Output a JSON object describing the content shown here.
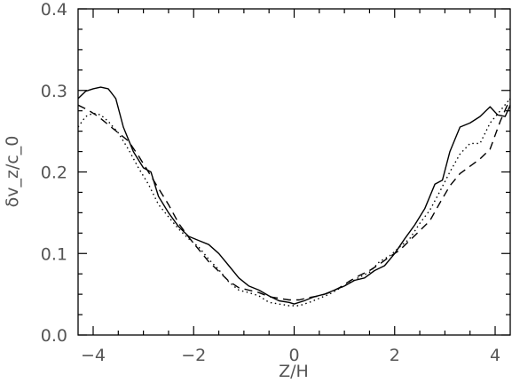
{
  "chart_data": {
    "type": "line",
    "xlabel": "Z/H",
    "ylabel": "δv_z/c_0",
    "xlim": [
      -4.3,
      4.3
    ],
    "ylim": [
      0,
      0.4
    ],
    "x_ticks": [
      -4,
      -2,
      0,
      2,
      4
    ],
    "x_tick_labels": [
      "−4",
      "−2",
      "0",
      "2",
      "4"
    ],
    "y_ticks": [
      0.0,
      0.1,
      0.2,
      0.3,
      0.4
    ],
    "y_tick_labels": [
      "0.0",
      "0.1",
      "0.2",
      "0.3",
      "0.4"
    ],
    "grid": false,
    "series": [
      {
        "style": "solid",
        "x": [
          -4.3,
          -4.15,
          -4.0,
          -3.85,
          -3.7,
          -3.55,
          -3.4,
          -3.2,
          -3.0,
          -2.85,
          -2.7,
          -2.5,
          -2.3,
          -2.1,
          -1.9,
          -1.7,
          -1.5,
          -1.3,
          -1.1,
          -0.9,
          -0.7,
          -0.5,
          -0.3,
          -0.1,
          0.0,
          0.2,
          0.4,
          0.6,
          0.8,
          1.0,
          1.2,
          1.4,
          1.6,
          1.8,
          2.0,
          2.2,
          2.4,
          2.6,
          2.8,
          2.95,
          3.1,
          3.3,
          3.5,
          3.7,
          3.9,
          4.05,
          4.2,
          4.3
        ],
        "y": [
          0.29,
          0.299,
          0.302,
          0.304,
          0.302,
          0.29,
          0.255,
          0.225,
          0.205,
          0.2,
          0.17,
          0.15,
          0.133,
          0.121,
          0.116,
          0.111,
          0.1,
          0.085,
          0.07,
          0.06,
          0.055,
          0.048,
          0.042,
          0.04,
          0.038,
          0.042,
          0.047,
          0.05,
          0.055,
          0.06,
          0.067,
          0.07,
          0.079,
          0.085,
          0.1,
          0.118,
          0.135,
          0.155,
          0.185,
          0.19,
          0.225,
          0.255,
          0.26,
          0.268,
          0.28,
          0.27,
          0.268,
          0.282
        ]
      },
      {
        "style": "dashed",
        "x": [
          -4.3,
          -4.1,
          -3.9,
          -3.7,
          -3.5,
          -3.3,
          -3.1,
          -2.9,
          -2.7,
          -2.5,
          -2.3,
          -2.1,
          -1.9,
          -1.7,
          -1.5,
          -1.3,
          -1.1,
          -0.9,
          -0.7,
          -0.5,
          -0.3,
          -0.1,
          0.1,
          0.3,
          0.5,
          0.7,
          0.9,
          1.1,
          1.3,
          1.5,
          1.7,
          1.9,
          2.1,
          2.3,
          2.5,
          2.7,
          2.9,
          3.1,
          3.3,
          3.5,
          3.7,
          3.9,
          4.1,
          4.3
        ],
        "y": [
          0.282,
          0.276,
          0.268,
          0.258,
          0.248,
          0.238,
          0.22,
          0.2,
          0.18,
          0.16,
          0.137,
          0.12,
          0.105,
          0.09,
          0.078,
          0.066,
          0.058,
          0.055,
          0.052,
          0.047,
          0.045,
          0.043,
          0.043,
          0.046,
          0.048,
          0.052,
          0.058,
          0.066,
          0.073,
          0.079,
          0.087,
          0.096,
          0.104,
          0.116,
          0.128,
          0.14,
          0.162,
          0.183,
          0.198,
          0.207,
          0.216,
          0.228,
          0.262,
          0.29
        ]
      },
      {
        "style": "dotted",
        "x": [
          -4.3,
          -4.15,
          -4.0,
          -3.85,
          -3.7,
          -3.5,
          -3.3,
          -3.1,
          -2.9,
          -2.7,
          -2.5,
          -2.3,
          -2.1,
          -1.9,
          -1.7,
          -1.5,
          -1.3,
          -1.1,
          -0.9,
          -0.7,
          -0.5,
          -0.3,
          -0.1,
          0.1,
          0.3,
          0.5,
          0.7,
          0.9,
          1.1,
          1.3,
          1.5,
          1.7,
          1.9,
          2.1,
          2.3,
          2.5,
          2.7,
          2.9,
          3.1,
          3.3,
          3.5,
          3.7,
          3.9,
          4.1,
          4.3
        ],
        "y": [
          0.255,
          0.268,
          0.272,
          0.27,
          0.262,
          0.248,
          0.228,
          0.205,
          0.185,
          0.16,
          0.145,
          0.13,
          0.118,
          0.108,
          0.093,
          0.08,
          0.065,
          0.055,
          0.052,
          0.048,
          0.04,
          0.038,
          0.036,
          0.036,
          0.04,
          0.045,
          0.05,
          0.057,
          0.064,
          0.071,
          0.077,
          0.09,
          0.097,
          0.108,
          0.118,
          0.137,
          0.153,
          0.176,
          0.2,
          0.222,
          0.235,
          0.235,
          0.26,
          0.275,
          0.29
        ]
      }
    ]
  }
}
